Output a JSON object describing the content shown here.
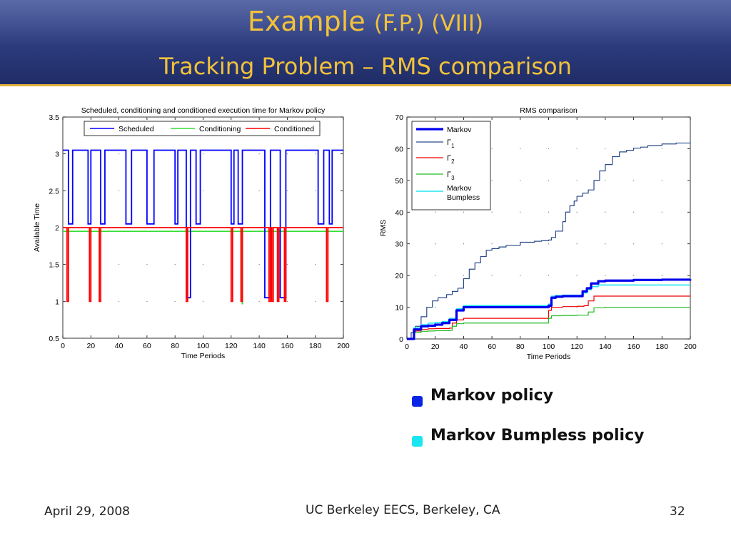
{
  "slide": {
    "title_main": "Example",
    "title_suffix": "(F.P.) (VIII)",
    "subtitle": "Tracking Problem – RMS comparison",
    "title_color": "#f2c23a"
  },
  "bullets": [
    {
      "text": "Markov policy",
      "color": "#0a24e6"
    },
    {
      "text": "Markov Bumpless policy",
      "color": "#19e6f0"
    }
  ],
  "footer": {
    "date": "April 29, 2008",
    "center": "UC Berkeley EECS, Berkeley, CA",
    "page": "32"
  },
  "chart_data": [
    {
      "type": "line",
      "title": "Scheduled, conditioning and conditioned execution time for Markov policy",
      "xlabel": "Time Periods",
      "ylabel": "Available Time",
      "xlim": [
        0,
        200
      ],
      "ylim": [
        0.5,
        3.5
      ],
      "xticks": [
        0,
        20,
        40,
        60,
        80,
        100,
        120,
        140,
        160,
        180,
        200
      ],
      "yticks": [
        0.5,
        1,
        1.5,
        2,
        2.5,
        3,
        3.5
      ],
      "legend_position": "top",
      "series": [
        {
          "name": "Scheduled",
          "color": "#0000ff",
          "kind": "switching",
          "high": 3.05,
          "mid": 2.05,
          "low": 1.05,
          "segments": [
            [
              0,
              3.05
            ],
            [
              4,
              2.05
            ],
            [
              7,
              3.05
            ],
            [
              18,
              2.05
            ],
            [
              20,
              3.05
            ],
            [
              27,
              2.05
            ],
            [
              30,
              3.05
            ],
            [
              45,
              2.05
            ],
            [
              49,
              3.05
            ],
            [
              60,
              2.05
            ],
            [
              65,
              3.05
            ],
            [
              80,
              2.05
            ],
            [
              82,
              3.05
            ],
            [
              88,
              1.05
            ],
            [
              91,
              3.05
            ],
            [
              95,
              2.05
            ],
            [
              98,
              3.05
            ],
            [
              120,
              2.05
            ],
            [
              122,
              3.05
            ],
            [
              125,
              2.05
            ],
            [
              128,
              3.05
            ],
            [
              144,
              1.05
            ],
            [
              148,
              3.05
            ],
            [
              155,
              1.05
            ],
            [
              159,
              3.05
            ],
            [
              182,
              2.05
            ],
            [
              186,
              3.05
            ],
            [
              190,
              2.05
            ],
            [
              192,
              3.05
            ],
            [
              200,
              3.05
            ]
          ]
        },
        {
          "name": "Conditioning",
          "color": "#33dd33",
          "level": 1.95
        },
        {
          "name": "Conditioned",
          "color": "#ff0000",
          "level": 2.0,
          "dip_value": 1.0,
          "dips": [
            [
              3,
              4
            ],
            [
              19,
              20
            ],
            [
              26,
              27
            ],
            [
              88,
              89
            ],
            [
              120,
              121
            ],
            [
              127,
              128
            ],
            [
              147,
              148
            ],
            [
              149,
              150
            ],
            [
              153,
              154
            ],
            [
              158,
              159
            ],
            [
              188,
              189
            ]
          ]
        }
      ]
    },
    {
      "type": "line",
      "title": "RMS comparison",
      "xlabel": "Time Periods",
      "ylabel": "RMS",
      "xlim": [
        0,
        200
      ],
      "ylim": [
        0,
        70
      ],
      "xticks": [
        0,
        20,
        40,
        60,
        80,
        100,
        120,
        140,
        160,
        180,
        200
      ],
      "yticks": [
        0,
        10,
        20,
        30,
        40,
        50,
        60,
        70
      ],
      "legend_position": "top-left",
      "series": [
        {
          "name": "Markov",
          "color": "#0000ee",
          "width": 3.2,
          "x": [
            0,
            5,
            10,
            15,
            20,
            25,
            30,
            35,
            40,
            60,
            80,
            95,
            100,
            102,
            105,
            110,
            120,
            124,
            127,
            130,
            135,
            140,
            160,
            180,
            200
          ],
          "y": [
            0,
            3,
            4,
            4.2,
            4.5,
            5,
            6,
            9,
            10,
            10,
            10,
            10,
            10.5,
            13,
            13.3,
            13.5,
            13.5,
            15,
            16,
            17.5,
            18.2,
            18.4,
            18.6,
            18.7,
            18.8
          ]
        },
        {
          "name": "Γ1",
          "label_main": "Γ",
          "label_sub": "1",
          "color": "#2a4a8a",
          "width": 1.2,
          "x": [
            0,
            3,
            6,
            10,
            14,
            18,
            22,
            28,
            32,
            36,
            40,
            44,
            48,
            52,
            56,
            60,
            65,
            70,
            80,
            90,
            95,
            100,
            102,
            105,
            110,
            112,
            115,
            118,
            120,
            124,
            128,
            132,
            136,
            140,
            145,
            150,
            155,
            160,
            165,
            170,
            180,
            190,
            200
          ],
          "y": [
            0,
            2,
            4,
            7,
            10,
            12,
            13,
            14,
            15,
            16,
            19,
            22,
            24,
            26,
            28,
            28.5,
            29,
            29.5,
            30.5,
            30.8,
            31,
            31.2,
            32,
            34,
            37,
            40,
            42,
            43.5,
            45,
            46,
            47,
            50,
            53,
            55,
            57.5,
            59,
            59.5,
            60.2,
            60.5,
            61,
            61.5,
            61.8,
            62.2
          ]
        },
        {
          "name": "Γ2",
          "label_main": "Γ",
          "label_sub": "2",
          "color": "#ee0000",
          "width": 1.2,
          "x": [
            0,
            5,
            10,
            15,
            20,
            30,
            32,
            35,
            40,
            60,
            80,
            97,
            100,
            102,
            110,
            120,
            125,
            128,
            132,
            140,
            160,
            180,
            200
          ],
          "y": [
            0,
            2.5,
            3,
            3.2,
            3.3,
            3.4,
            5,
            6,
            6.5,
            6.5,
            6.5,
            6.5,
            9,
            10,
            10.2,
            10.3,
            10.5,
            12,
            13.5,
            13.5,
            13.5,
            13.5,
            13.6
          ]
        },
        {
          "name": "Γ3",
          "label_main": "Γ",
          "label_sub": "3",
          "color": "#22bb22",
          "width": 1.2,
          "x": [
            0,
            5,
            10,
            15,
            20,
            30,
            32,
            35,
            40,
            60,
            80,
            97,
            100,
            102,
            110,
            120,
            125,
            128,
            132,
            140,
            160,
            180,
            200
          ],
          "y": [
            0,
            2,
            2.4,
            2.5,
            2.6,
            2.7,
            4,
            4.8,
            5,
            5,
            5,
            5,
            6.5,
            7.3,
            7.4,
            7.5,
            7.5,
            8.5,
            9.8,
            10,
            10,
            10,
            10
          ]
        },
        {
          "name": "Markov Bumpless",
          "label_lines": [
            "Markov",
            "Bumpless"
          ],
          "color": "#22e6f0",
          "width": 1.6,
          "x": [
            0,
            5,
            10,
            15,
            20,
            25,
            30,
            35,
            40,
            60,
            80,
            95,
            100,
            102,
            105,
            110,
            120,
            124,
            127,
            130,
            135,
            140,
            160,
            180,
            200
          ],
          "y": [
            0,
            3.5,
            4.5,
            5,
            5.2,
            5.5,
            6.5,
            9.5,
            10.5,
            10.5,
            10.5,
            10.5,
            11,
            13.5,
            13.7,
            13.8,
            13.8,
            14.5,
            15.5,
            16.5,
            17,
            17,
            17,
            17,
            17
          ]
        }
      ]
    }
  ]
}
